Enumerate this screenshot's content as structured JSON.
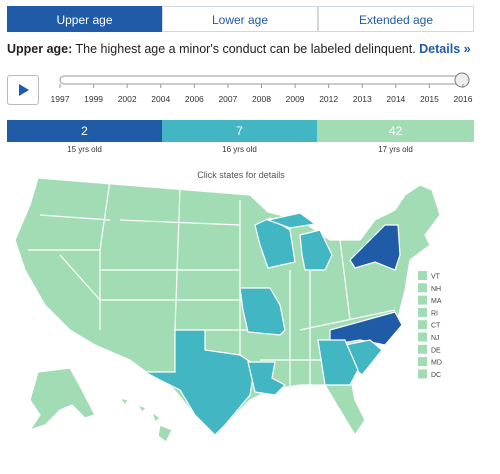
{
  "tabs": [
    "Upper age",
    "Lower age",
    "Extended age"
  ],
  "description": {
    "label": "Upper age:",
    "text": "The highest age a minor's conduct can be labeled delinquent.",
    "link": "Details »"
  },
  "timeline": {
    "years": [
      "1997",
      "1999",
      "2002",
      "2004",
      "2006",
      "2007",
      "2008",
      "2009",
      "2012",
      "2013",
      "2014",
      "2015",
      "2016"
    ]
  },
  "legend": [
    {
      "count": "2",
      "label": "15 yrs old",
      "color": "#1f5ba6"
    },
    {
      "count": "7",
      "label": "16 yrs old",
      "color": "#42b7c3"
    },
    {
      "count": "42",
      "label": "17 yrs old",
      "color": "#a2dcb5"
    }
  ],
  "map": {
    "hint": "Click states for details",
    "small_states": [
      "VT",
      "NH",
      "MA",
      "RI",
      "CT",
      "NJ",
      "DE",
      "MD",
      "DC"
    ]
  }
}
